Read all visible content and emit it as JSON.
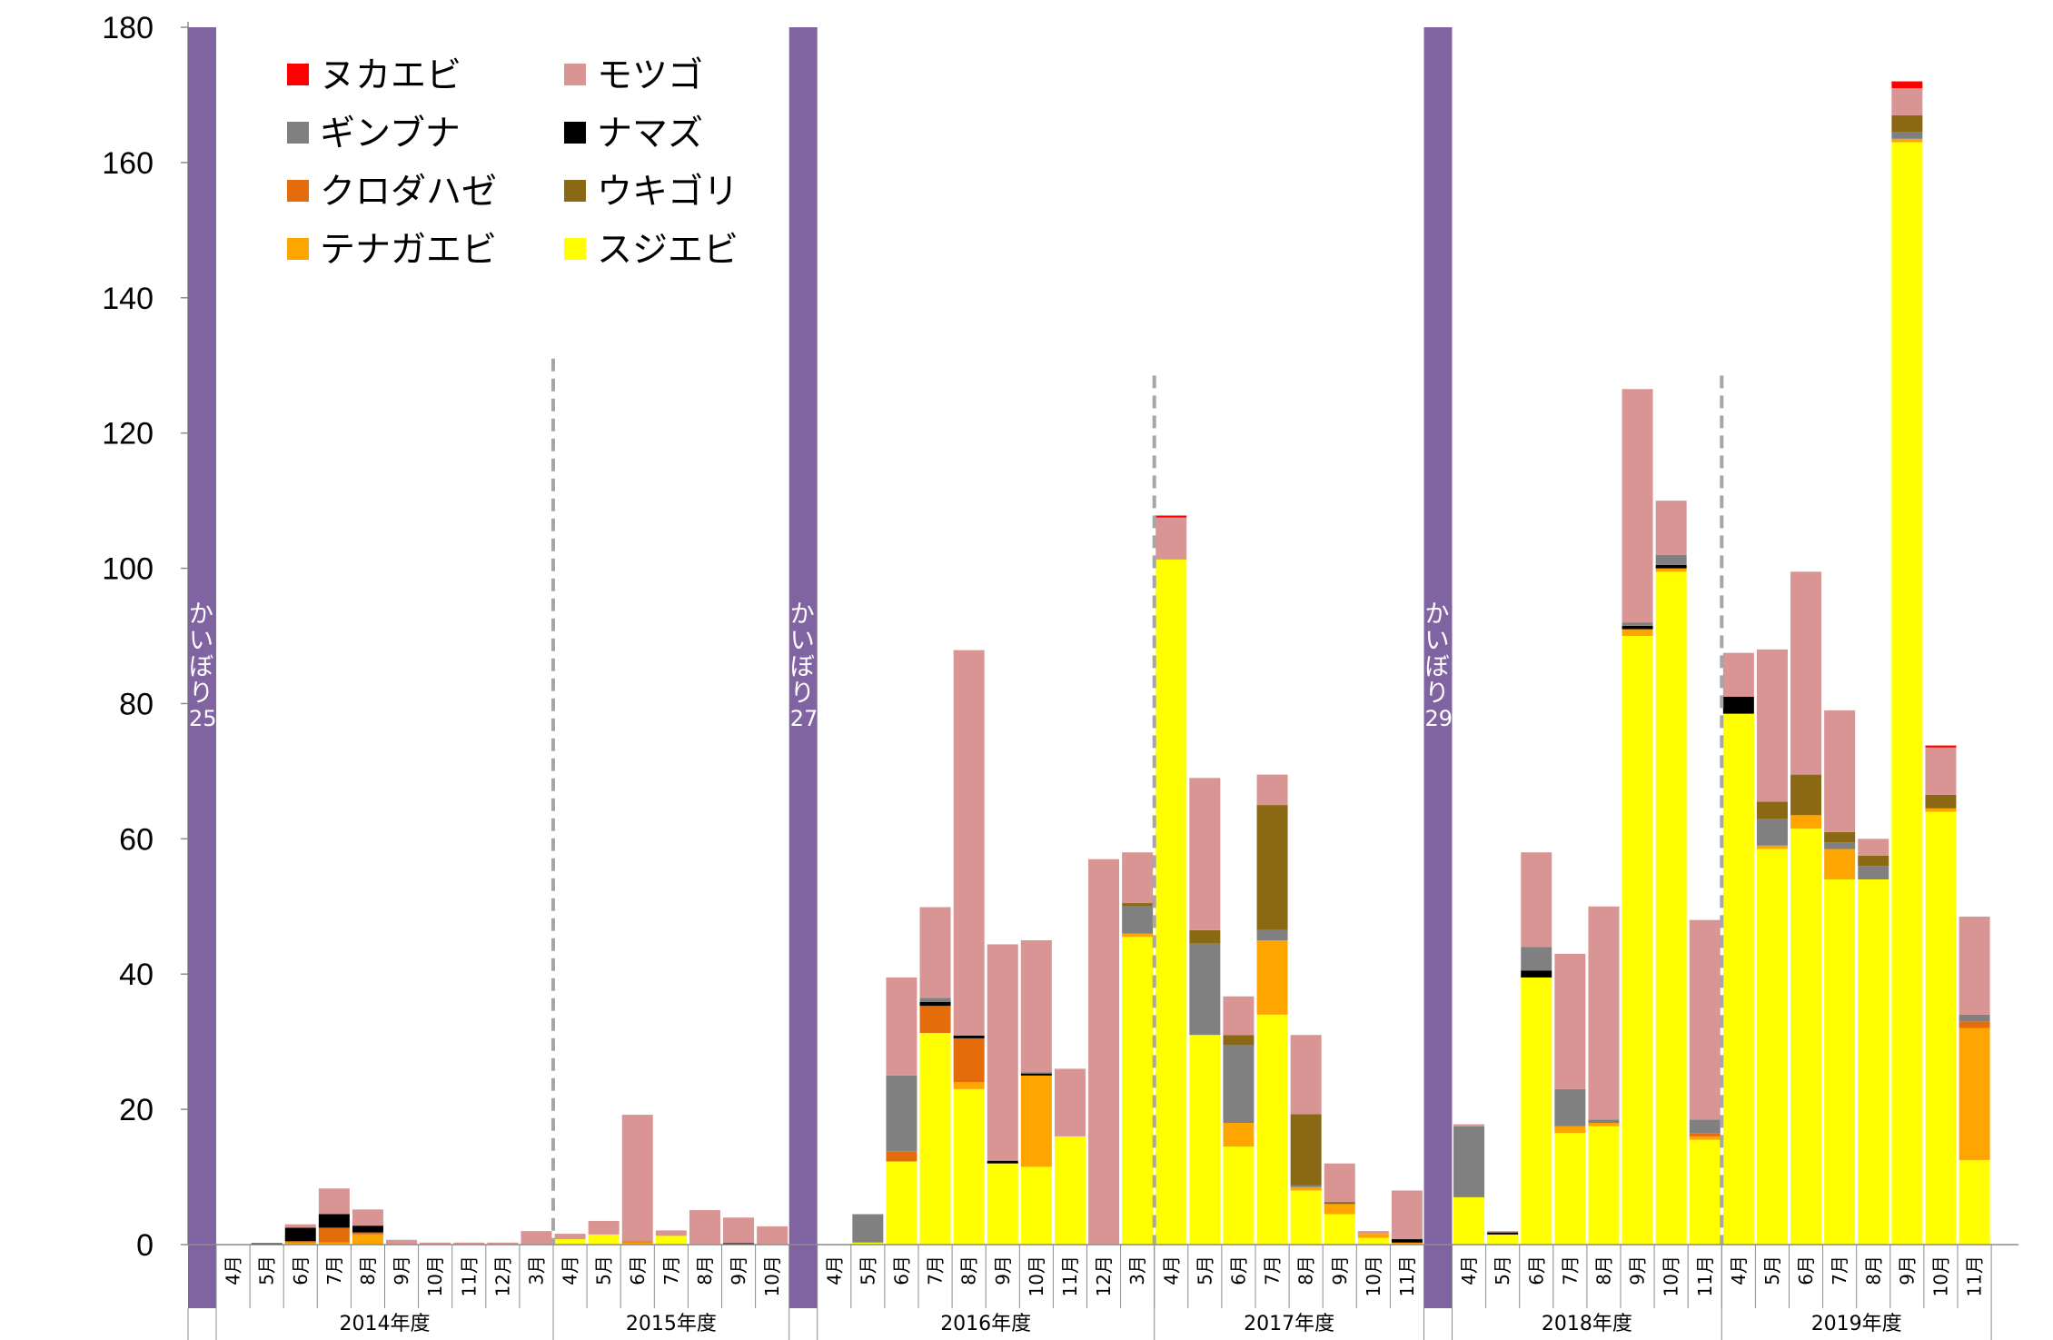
{
  "chart_data": {
    "type": "bar",
    "stacked": true,
    "ylim": [
      0,
      180
    ],
    "yticks": [
      0,
      20,
      40,
      60,
      80,
      100,
      120,
      140,
      160,
      180
    ],
    "grid": false,
    "legend_position": "top-left",
    "series": [
      {
        "name": "スジエビ",
        "color": "#FFFF00"
      },
      {
        "name": "テナガエビ",
        "color": "#FFA500"
      },
      {
        "name": "クロダハゼ",
        "color": "#E46C0A"
      },
      {
        "name": "ナマズ",
        "color": "#000000"
      },
      {
        "name": "ギンブナ",
        "color": "#808080"
      },
      {
        "name": "ウキゴリ",
        "color": "#8B6914"
      },
      {
        "name": "モツゴ",
        "color": "#D99594"
      },
      {
        "name": "ヌカエビ",
        "color": "#FF0000"
      }
    ],
    "legend_order": [
      "ヌカエビ",
      "モツゴ",
      "ギンブナ",
      "ナマズ",
      "クロダハゼ",
      "ウキゴリ",
      "テナガエビ",
      "スジエビ"
    ],
    "groups": [
      {
        "label": "2014年度",
        "months": [
          {
            "m": "4月",
            "v": [
              0,
              0,
              0,
              0,
              0,
              0,
              0,
              0
            ]
          },
          {
            "m": "5月",
            "v": [
              0,
              0,
              0,
              0.2,
              0,
              0,
              0,
              0
            ]
          },
          {
            "m": "6月",
            "v": [
              0,
              0.3,
              0.2,
              2,
              0,
              0,
              0.5,
              0
            ]
          },
          {
            "m": "7月",
            "v": [
              0,
              0.3,
              2.2,
              2,
              0,
              0,
              3.8,
              0
            ]
          },
          {
            "m": "8月",
            "v": [
              0,
              1.5,
              0.3,
              1,
              0,
              0,
              2.4,
              0
            ]
          },
          {
            "m": "9月",
            "v": [
              0,
              0,
              0,
              0,
              0,
              0,
              0.7,
              0
            ]
          },
          {
            "m": "10月",
            "v": [
              0,
              0,
              0,
              0,
              0,
              0,
              0.3,
              0
            ]
          },
          {
            "m": "11月",
            "v": [
              0,
              0,
              0,
              0,
              0,
              0,
              0.3,
              0
            ]
          },
          {
            "m": "12月",
            "v": [
              0,
              0,
              0,
              0,
              0,
              0,
              0.3,
              0
            ]
          },
          {
            "m": "3月",
            "v": [
              0,
              0,
              0,
              0,
              0,
              0,
              2,
              0
            ]
          }
        ]
      },
      {
        "label": "2015年度",
        "months": [
          {
            "m": "4月",
            "v": [
              0.8,
              0,
              0,
              0,
              0,
              0,
              0.8,
              0
            ]
          },
          {
            "m": "5月",
            "v": [
              1.5,
              0,
              0,
              0,
              0,
              0,
              2,
              0
            ]
          },
          {
            "m": "6月",
            "v": [
              0,
              0.3,
              0.2,
              0,
              0,
              0,
              18.7,
              0
            ]
          },
          {
            "m": "7月",
            "v": [
              1.3,
              0,
              0,
              0,
              0,
              0,
              0.8,
              0
            ]
          },
          {
            "m": "8月",
            "v": [
              0,
              0,
              0,
              0,
              0,
              0,
              5.1,
              0
            ]
          },
          {
            "m": "9月",
            "v": [
              0,
              0,
              0,
              0.2,
              0,
              0,
              3.8,
              0
            ]
          },
          {
            "m": "10月",
            "v": [
              0,
              0,
              0,
              0,
              0,
              0,
              2.7,
              0
            ]
          }
        ]
      },
      {
        "label": "2016年度",
        "months": [
          {
            "m": "4月",
            "v": [
              0,
              0,
              0,
              0,
              0,
              0,
              0,
              0
            ]
          },
          {
            "m": "5月",
            "v": [
              0.3,
              0,
              0,
              0,
              4.2,
              0,
              0,
              0
            ]
          },
          {
            "m": "6月",
            "v": [
              12.3,
              0,
              1.5,
              0,
              11.2,
              0,
              14.5,
              0
            ]
          },
          {
            "m": "7月",
            "v": [
              31.3,
              0,
              4,
              0.6,
              0.6,
              0,
              13.4,
              0
            ]
          },
          {
            "m": "8月",
            "v": [
              23,
              1,
              6.5,
              0.4,
              0,
              0,
              57,
              0
            ]
          },
          {
            "m": "9月",
            "v": [
              12,
              0,
              0,
              0.4,
              0,
              0,
              32,
              0
            ]
          },
          {
            "m": "10月",
            "v": [
              11.5,
              13.5,
              0,
              0.3,
              0.2,
              0,
              19.5,
              0
            ]
          },
          {
            "m": "11月",
            "v": [
              16,
              0,
              0,
              0,
              0,
              0,
              10,
              0
            ]
          },
          {
            "m": "12月",
            "v": [
              0,
              0,
              0,
              0,
              0,
              0,
              57,
              0
            ]
          },
          {
            "m": "3月",
            "v": [
              45.5,
              0.5,
              0,
              0,
              4,
              0.5,
              7.5,
              0
            ]
          }
        ]
      },
      {
        "label": "2017年度",
        "months": [
          {
            "m": "4月",
            "v": [
              101.3,
              0,
              0,
              0,
              0,
              0,
              6.2,
              0.3
            ]
          },
          {
            "m": "5月",
            "v": [
              31,
              0,
              0,
              0,
              13.5,
              2,
              22.5,
              0
            ]
          },
          {
            "m": "6月",
            "v": [
              14.5,
              3.5,
              0,
              0,
              11.5,
              1.5,
              5.7,
              0
            ]
          },
          {
            "m": "7月",
            "v": [
              34,
              11,
              0,
              0,
              1.5,
              18.5,
              4.5,
              0
            ]
          },
          {
            "m": "8月",
            "v": [
              8,
              0.5,
              0,
              0,
              0.3,
              10.5,
              11.7,
              0
            ]
          },
          {
            "m": "9月",
            "v": [
              4.5,
              1.5,
              0,
              0,
              0,
              0.3,
              5.7,
              0
            ]
          },
          {
            "m": "10月",
            "v": [
              1,
              0.6,
              0,
              0,
              0,
              0,
              0.4,
              0
            ]
          },
          {
            "m": "11月",
            "v": [
              0,
              0.3,
              0,
              0.5,
              0,
              0,
              7.2,
              0
            ]
          }
        ]
      },
      {
        "label": "2018年度",
        "months": [
          {
            "m": "4月",
            "v": [
              7,
              0,
              0,
              0,
              10.5,
              0,
              0.3,
              0
            ]
          },
          {
            "m": "5月",
            "v": [
              1.5,
              0,
              0,
              0.3,
              0,
              0,
              0.2,
              0
            ]
          },
          {
            "m": "6月",
            "v": [
              39.5,
              0,
              0,
              1,
              3.5,
              0,
              14,
              0
            ]
          },
          {
            "m": "7月",
            "v": [
              16.5,
              1,
              0,
              0,
              5.5,
              0,
              20,
              0
            ]
          },
          {
            "m": "8月",
            "v": [
              17.5,
              0.5,
              0,
              0,
              0.5,
              0,
              31.5,
              0
            ]
          },
          {
            "m": "9月",
            "v": [
              90,
              1,
              0,
              0.5,
              0.5,
              0,
              34.5,
              0
            ]
          },
          {
            "m": "10月",
            "v": [
              99.5,
              0.5,
              0,
              0.5,
              1.5,
              0,
              8,
              0
            ]
          },
          {
            "m": "11月",
            "v": [
              15.5,
              0.5,
              0.5,
              0,
              2,
              0,
              29.5,
              0
            ]
          }
        ]
      },
      {
        "label": "2019年度",
        "months": [
          {
            "m": "4月",
            "v": [
              78.5,
              0,
              0,
              2.5,
              0,
              0,
              6.5,
              0
            ]
          },
          {
            "m": "5月",
            "v": [
              58.5,
              0.5,
              0,
              0,
              4,
              2.5,
              22.5,
              0
            ]
          },
          {
            "m": "6月",
            "v": [
              61.5,
              2,
              0,
              0,
              0,
              6,
              30,
              0
            ]
          },
          {
            "m": "7月",
            "v": [
              54,
              4.5,
              0,
              0,
              1,
              1.5,
              18,
              0
            ]
          },
          {
            "m": "8月",
            "v": [
              54,
              0,
              0,
              0,
              2,
              1.5,
              2.5,
              0
            ]
          },
          {
            "m": "9月",
            "v": [
              163,
              0.5,
              0,
              0,
              1,
              2.5,
              4,
              1
            ]
          },
          {
            "m": "10月",
            "v": [
              64,
              0.5,
              0,
              0,
              0,
              2,
              7,
              0.3
            ]
          },
          {
            "m": "11月",
            "v": [
              12.5,
              19.5,
              1,
              0,
              1,
              0,
              14.5,
              0
            ]
          }
        ]
      }
    ],
    "kaibori_markers": [
      {
        "label": "かいぼり",
        "number": "25",
        "before_group": 0
      },
      {
        "label": "かいぼり",
        "number": "27",
        "before_group": 2
      },
      {
        "label": "かいぼり",
        "number": "29",
        "before_group": 4
      }
    ],
    "kaibori_color": "#8064A2",
    "dashed_separators_before_group": [
      1,
      3,
      5
    ]
  }
}
